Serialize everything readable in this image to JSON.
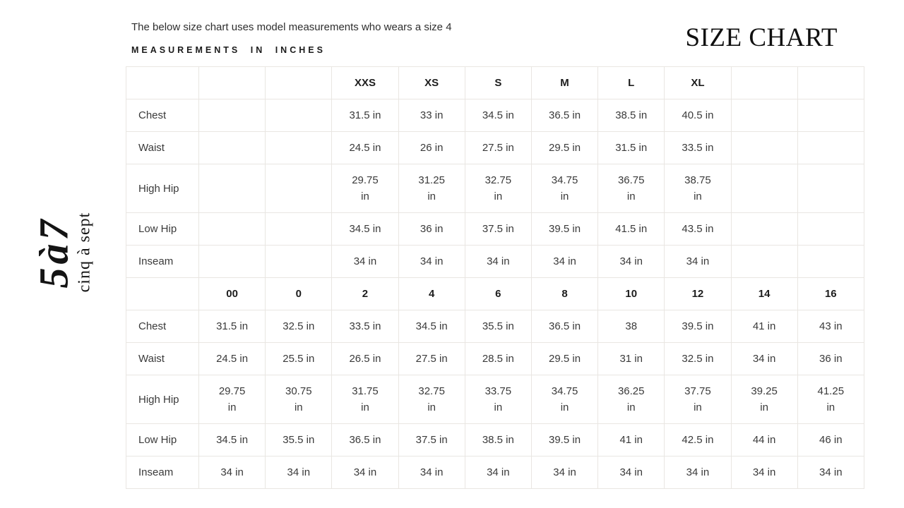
{
  "header": {
    "intro": "The below size chart uses model measurements who wears a size 4",
    "note": "MEASUREMENTS IN INCHES",
    "title": "SIZE CHART"
  },
  "logo": {
    "mark": "5à7",
    "name": "cinq à sept"
  },
  "colors": {
    "table_border": "#e9e6e2",
    "body_text": "#3a3a3a",
    "heading_text": "#1d1d1d"
  },
  "size_table": {
    "sections": [
      {
        "name": "letter-sizes",
        "header": [
          "",
          "",
          "XXS",
          "XS",
          "S",
          "M",
          "L",
          "XL",
          "",
          ""
        ],
        "rows": [
          {
            "label": "Chest",
            "values": [
              "",
              "",
              "31.5 in",
              "33 in",
              "34.5 in",
              "36.5 in",
              "38.5 in",
              "40.5 in",
              "",
              ""
            ]
          },
          {
            "label": "Waist",
            "values": [
              "",
              "",
              "24.5 in",
              "26 in",
              "27.5 in",
              "29.5 in",
              "31.5 in",
              "33.5 in",
              "",
              ""
            ]
          },
          {
            "label": "High Hip",
            "values": [
              "",
              "",
              "29.75\nin",
              "31.25\nin",
              "32.75\nin",
              "34.75\nin",
              "36.75\nin",
              "38.75\nin",
              "",
              ""
            ]
          },
          {
            "label": "Low Hip",
            "values": [
              "",
              "",
              "34.5 in",
              "36 in",
              "37.5 in",
              "39.5 in",
              "41.5 in",
              "43.5 in",
              "",
              ""
            ]
          },
          {
            "label": "Inseam",
            "values": [
              "",
              "",
              "34 in",
              "34 in",
              "34 in",
              "34 in",
              "34 in",
              "34 in",
              "",
              ""
            ]
          }
        ]
      },
      {
        "name": "numeric-sizes",
        "header": [
          "00",
          "0",
          "2",
          "4",
          "6",
          "8",
          "10",
          "12",
          "14",
          "16"
        ],
        "rows": [
          {
            "label": "Chest",
            "values": [
              "31.5 in",
              "32.5 in",
              "33.5 in",
              "34.5 in",
              "35.5 in",
              "36.5 in",
              "38",
              "39.5 in",
              "41 in",
              "43 in"
            ]
          },
          {
            "label": "Waist",
            "values": [
              "24.5 in",
              "25.5 in",
              "26.5 in",
              "27.5 in",
              "28.5 in",
              "29.5 in",
              "31 in",
              "32.5 in",
              "34 in",
              "36 in"
            ]
          },
          {
            "label": "High Hip",
            "values": [
              "29.75\nin",
              "30.75\nin",
              "31.75\nin",
              "32.75\nin",
              "33.75\nin",
              "34.75\nin",
              "36.25\nin",
              "37.75\nin",
              "39.25\nin",
              "41.25\nin"
            ]
          },
          {
            "label": "Low Hip",
            "values": [
              "34.5 in",
              "35.5 in",
              "36.5 in",
              "37.5 in",
              "38.5 in",
              "39.5 in",
              "41 in",
              "42.5 in",
              "44 in",
              "46 in"
            ]
          },
          {
            "label": "Inseam",
            "values": [
              "34 in",
              "34 in",
              "34 in",
              "34 in",
              "34 in",
              "34 in",
              "34 in",
              "34 in",
              "34 in",
              "34 in"
            ]
          }
        ]
      }
    ]
  }
}
